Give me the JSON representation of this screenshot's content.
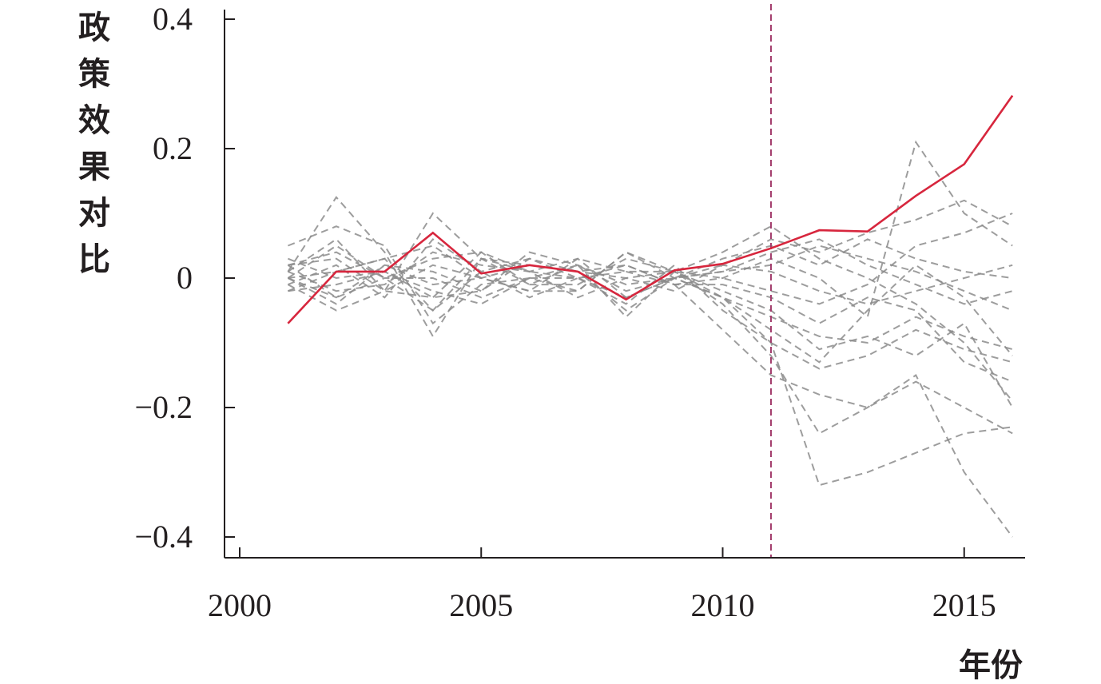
{
  "chart_data": {
    "type": "line",
    "title": "",
    "xlabel": "年份",
    "ylabel": "政策效果对比",
    "xlim": [
      1999.5,
      2016.25
    ],
    "ylim": [
      -0.405,
      0.415
    ],
    "x_ticks": [
      2000,
      2005,
      2010,
      2015
    ],
    "x_tick_labels": [
      "2000",
      "2005",
      "2010",
      "2015"
    ],
    "y_ticks": [
      0.4,
      0.2,
      0,
      -0.2,
      -0.4
    ],
    "y_tick_labels": [
      "0.4",
      "0.2",
      "0",
      "−0.2",
      "−0.4"
    ],
    "grid": false,
    "legend": "none",
    "policy_year": 2011,
    "x": [
      2001,
      2002,
      2003,
      2004,
      2005,
      2006,
      2007,
      2008,
      2009,
      2010,
      2011,
      2012,
      2013,
      2014,
      2015,
      2016
    ],
    "treated": {
      "color": "#d7263d",
      "values": [
        -0.07,
        0.01,
        0.01,
        0.07,
        0.007,
        0.02,
        0.01,
        -0.033,
        0.012,
        0.022,
        0.046,
        0.074,
        0.072,
        0.127,
        0.176,
        0.282
      ]
    },
    "placebo_color": "#8c8c8c",
    "policy_line_color": "#a23a6a",
    "placebo": [
      [
        0.01,
        0.125,
        0.04,
        -0.09,
        0.03,
        0.02,
        0.01,
        -0.05,
        0.0,
        -0.03,
        -0.08,
        -0.13,
        -0.05,
        0.02,
        -0.03,
        -0.12
      ],
      [
        -0.01,
        -0.05,
        -0.02,
        0.1,
        0.03,
        -0.01,
        0.02,
        -0.06,
        0.01,
        -0.04,
        -0.12,
        -0.24,
        -0.2,
        -0.15,
        -0.3,
        -0.4
      ],
      [
        0.05,
        0.08,
        0.05,
        -0.07,
        -0.01,
        0.0,
        -0.02,
        0.04,
        0.01,
        -0.03,
        -0.1,
        -0.32,
        -0.3,
        -0.27,
        -0.24,
        -0.23
      ],
      [
        0.0,
        -0.03,
        0.02,
        0.01,
        -0.02,
        0.03,
        0.01,
        0.02,
        -0.01,
        0.0,
        0.03,
        0.0,
        -0.06,
        0.21,
        0.1,
        0.05
      ],
      [
        0.02,
        0.03,
        -0.02,
        -0.03,
        0.04,
        0.01,
        0.0,
        -0.03,
        0.0,
        0.02,
        0.06,
        0.04,
        0.07,
        0.09,
        0.12,
        0.08
      ],
      [
        -0.02,
        0.01,
        0.03,
        0.05,
        0.0,
        -0.02,
        0.03,
        0.01,
        0.01,
        0.04,
        0.08,
        0.03,
        0.0,
        -0.04,
        -0.1,
        -0.19
      ],
      [
        0.01,
        -0.02,
        -0.01,
        0.04,
        0.02,
        0.01,
        -0.03,
        0.0,
        0.01,
        -0.02,
        -0.05,
        -0.11,
        -0.09,
        -0.12,
        -0.07,
        -0.2
      ],
      [
        0.0,
        0.05,
        0.0,
        -0.05,
        0.01,
        -0.03,
        0.0,
        0.02,
        -0.01,
        -0.08,
        -0.15,
        -0.18,
        -0.2,
        -0.16,
        -0.2,
        -0.24
      ],
      [
        0.03,
        0.0,
        0.01,
        -0.02,
        -0.04,
        0.0,
        0.02,
        -0.02,
        0.0,
        0.01,
        0.02,
        0.05,
        0.03,
        0.01,
        -0.02,
        -0.05
      ],
      [
        -0.01,
        0.02,
        -0.03,
        0.06,
        0.01,
        0.03,
        0.0,
        -0.04,
        0.02,
        -0.05,
        -0.1,
        -0.14,
        -0.12,
        -0.08,
        -0.11,
        -0.13
      ],
      [
        0.0,
        -0.04,
        0.02,
        -0.01,
        0.0,
        0.02,
        0.01,
        0.0,
        -0.02,
        0.02,
        0.01,
        -0.02,
        -0.04,
        -0.02,
        0.0,
        0.02
      ],
      [
        0.02,
        0.04,
        0.0,
        0.03,
        0.04,
        -0.01,
        -0.01,
        0.03,
        0.01,
        0.0,
        -0.02,
        -0.04,
        -0.01,
        0.05,
        0.07,
        0.1
      ],
      [
        -0.02,
        -0.01,
        0.01,
        -0.03,
        -0.02,
        0.04,
        0.02,
        -0.01,
        0.0,
        0.01,
        0.04,
        0.06,
        0.02,
        -0.01,
        -0.04,
        -0.02
      ],
      [
        0.01,
        0.06,
        -0.02,
        0.02,
        0.0,
        -0.02,
        -0.02,
        0.04,
        0.0,
        -0.03,
        -0.06,
        -0.09,
        -0.1,
        -0.06,
        -0.09,
        -0.11
      ],
      [
        0.0,
        0.01,
        0.03,
        -0.05,
        0.03,
        0.01,
        0.03,
        -0.03,
        0.0,
        0.03,
        0.05,
        0.02,
        0.06,
        0.03,
        0.01,
        0.0
      ],
      [
        0.02,
        -0.03,
        0.0,
        0.0,
        -0.03,
        0.0,
        0.0,
        0.01,
        -0.01,
        -0.01,
        -0.03,
        -0.07,
        -0.03,
        -0.05,
        -0.13,
        -0.16
      ]
    ]
  }
}
